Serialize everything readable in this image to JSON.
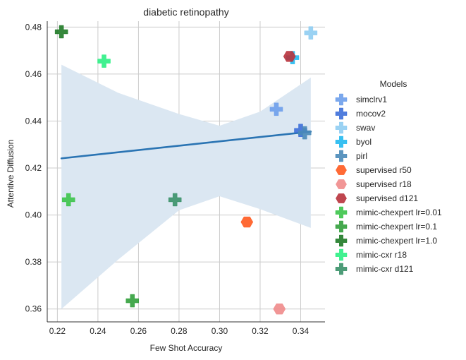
{
  "chart_data": {
    "type": "scatter",
    "title": "diabetic retinopathy",
    "xlabel": "Few Shot Accuracy",
    "ylabel": "Attentive Diffusion",
    "xlim": [
      0.215,
      0.352
    ],
    "ylim": [
      0.3545,
      0.4825
    ],
    "xticks": [
      "0.22",
      "0.24",
      "0.26",
      "0.28",
      "0.30",
      "0.32",
      "0.34"
    ],
    "yticks": [
      "0.36",
      "0.38",
      "0.40",
      "0.42",
      "0.44",
      "0.46",
      "0.48"
    ],
    "grid": true,
    "legend_placement": "right",
    "legend_title": "Models",
    "series": [
      {
        "name": "simclrv1",
        "marker": "plus",
        "color": "#6d9eeb",
        "x": 0.328,
        "y": 0.445
      },
      {
        "name": "mocov2",
        "marker": "plus",
        "color": "#3d6fd9",
        "x": 0.34,
        "y": 0.436
      },
      {
        "name": "swav",
        "marker": "plus",
        "color": "#8fcdf2",
        "x": 0.345,
        "y": 0.4775
      },
      {
        "name": "byol",
        "marker": "plus",
        "color": "#22b9f0",
        "x": 0.336,
        "y": 0.467
      },
      {
        "name": "pirl",
        "marker": "plus",
        "color": "#4a8ab8",
        "x": 0.342,
        "y": 0.435
      },
      {
        "name": "supervised r50",
        "marker": "hexagon",
        "color": "#ff5a1f",
        "x": 0.3135,
        "y": 0.397
      },
      {
        "name": "supervised r18",
        "marker": "hexagon",
        "color": "#f08b8b",
        "x": 0.3295,
        "y": 0.36
      },
      {
        "name": "supervised d121",
        "marker": "hexagon",
        "color": "#b8323c",
        "x": 0.3345,
        "y": 0.4675
      },
      {
        "name": "mimic-chexpert lr=0.01",
        "marker": "plus",
        "color": "#3cc44a",
        "x": 0.2255,
        "y": 0.4065
      },
      {
        "name": "mimic-chexpert lr=0.1",
        "marker": "plus",
        "color": "#32a03c",
        "x": 0.257,
        "y": 0.3635
      },
      {
        "name": "mimic-chexpert lr=1.0",
        "marker": "plus",
        "color": "#1f7a26",
        "x": 0.222,
        "y": 0.478
      },
      {
        "name": "mimic-cxr r18",
        "marker": "plus",
        "color": "#2cf084",
        "x": 0.243,
        "y": 0.4655
      },
      {
        "name": "mimic-cxr d121",
        "marker": "plus",
        "color": "#3a9169",
        "x": 0.278,
        "y": 0.4065
      }
    ],
    "regression": {
      "x": [
        0.222,
        0.345
      ],
      "y": [
        0.4241,
        0.4355
      ],
      "color": "#2a74b3",
      "ci_color": "#dbe7f2",
      "ci_upper": [
        [
          0.222,
          0.464
        ],
        [
          0.25,
          0.452
        ],
        [
          0.28,
          0.443
        ],
        [
          0.3,
          0.438
        ],
        [
          0.32,
          0.444
        ],
        [
          0.345,
          0.4585
        ]
      ],
      "ci_lower": [
        [
          0.222,
          0.36
        ],
        [
          0.25,
          0.381
        ],
        [
          0.28,
          0.402
        ],
        [
          0.3,
          0.408
        ],
        [
          0.32,
          0.4025
        ],
        [
          0.345,
          0.3945
        ]
      ]
    }
  }
}
